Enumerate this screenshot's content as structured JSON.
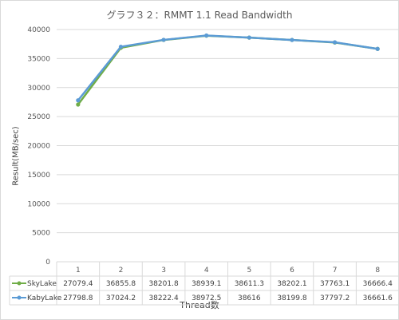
{
  "chart_data": {
    "type": "line",
    "title": "グラフ３２：RMMT 1.1 Read Bandwidth",
    "xlabel": "Thread数",
    "ylabel": "Result(MB/sec)",
    "ylim": [
      0,
      40000
    ],
    "yticks": [
      "0",
      "5000",
      "10000",
      "15000",
      "20000",
      "25000",
      "30000",
      "35000",
      "40000"
    ],
    "categories": [
      "1",
      "2",
      "3",
      "4",
      "5",
      "6",
      "7",
      "8"
    ],
    "series": [
      {
        "name": "SkyLake",
        "color": "#70ad47",
        "values": [
          27079.4,
          36855.8,
          38201.8,
          38939.1,
          38611.3,
          38202.1,
          37763.1,
          36666.4
        ],
        "labels": [
          "27079.4",
          "36855.8",
          "38201.8",
          "38939.1",
          "38611.3",
          "38202.1",
          "37763.1",
          "36666.4"
        ]
      },
      {
        "name": "KabyLake",
        "color": "#5b9bd5",
        "values": [
          27798.8,
          37024.2,
          38222.4,
          38972.5,
          38616,
          38199.8,
          37797.2,
          36661.6
        ],
        "labels": [
          "27798.8",
          "37024.2",
          "38222.4",
          "38972.5",
          "38616",
          "38199.8",
          "37797.2",
          "36661.6"
        ]
      }
    ],
    "grid": true,
    "legend": "data-table"
  }
}
